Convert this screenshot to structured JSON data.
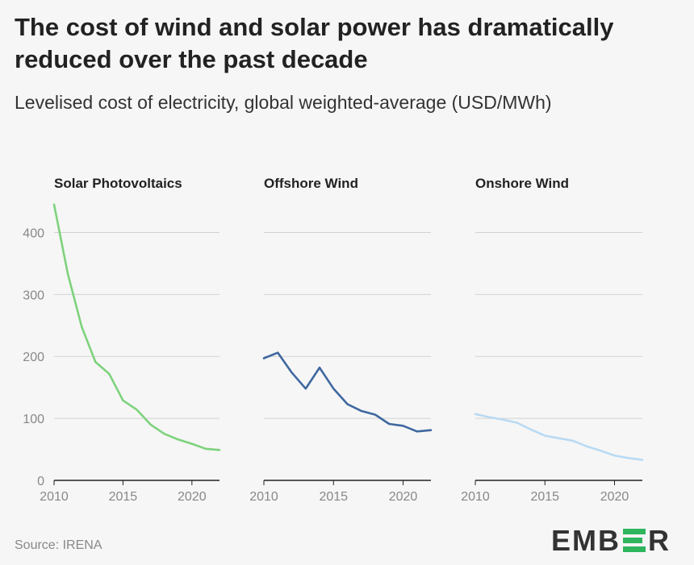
{
  "title": "The cost of wind and solar power has dramatically reduced over the past decade",
  "subtitle": "Levelised cost of electricity, global weighted-average (USD/MWh)",
  "source": "Source: IRENA",
  "logo": {
    "text_left": "EMB",
    "text_right": "R",
    "accent": "#2fb55d"
  },
  "chart_data": [
    {
      "type": "line",
      "title": "Solar Photovoltaics",
      "color": "#7ed27c",
      "x": [
        2010,
        2011,
        2012,
        2013,
        2014,
        2015,
        2016,
        2017,
        2018,
        2019,
        2020,
        2021,
        2022
      ],
      "values": [
        445,
        333,
        248,
        191,
        172,
        129,
        114,
        90,
        75,
        66,
        59,
        51,
        49
      ],
      "xticks": [
        2010,
        2015,
        2020
      ],
      "yticks": [
        0,
        100,
        200,
        300,
        400
      ],
      "ylim": [
        0,
        450
      ],
      "show_yticks": true,
      "grid": true
    },
    {
      "type": "line",
      "title": "Offshore Wind",
      "color": "#3f68a0",
      "x": [
        2010,
        2011,
        2012,
        2013,
        2014,
        2015,
        2016,
        2017,
        2018,
        2019,
        2020,
        2021,
        2022
      ],
      "values": [
        197,
        206,
        174,
        148,
        182,
        148,
        123,
        112,
        106,
        91,
        88,
        79,
        81
      ],
      "xticks": [
        2010,
        2015,
        2020
      ],
      "yticks": [
        0,
        100,
        200,
        300,
        400
      ],
      "ylim": [
        0,
        450
      ],
      "show_yticks": false,
      "grid": true
    },
    {
      "type": "line",
      "title": "Onshore Wind",
      "color": "#b9daf3",
      "x": [
        2010,
        2011,
        2012,
        2013,
        2014,
        2015,
        2016,
        2017,
        2018,
        2019,
        2020,
        2021,
        2022
      ],
      "values": [
        107,
        102,
        98,
        93,
        82,
        72,
        68,
        64,
        55,
        48,
        40,
        36,
        33
      ],
      "xticks": [
        2010,
        2015,
        2020
      ],
      "yticks": [
        0,
        100,
        200,
        300,
        400
      ],
      "ylim": [
        0,
        450
      ],
      "show_yticks": false,
      "grid": true
    }
  ]
}
